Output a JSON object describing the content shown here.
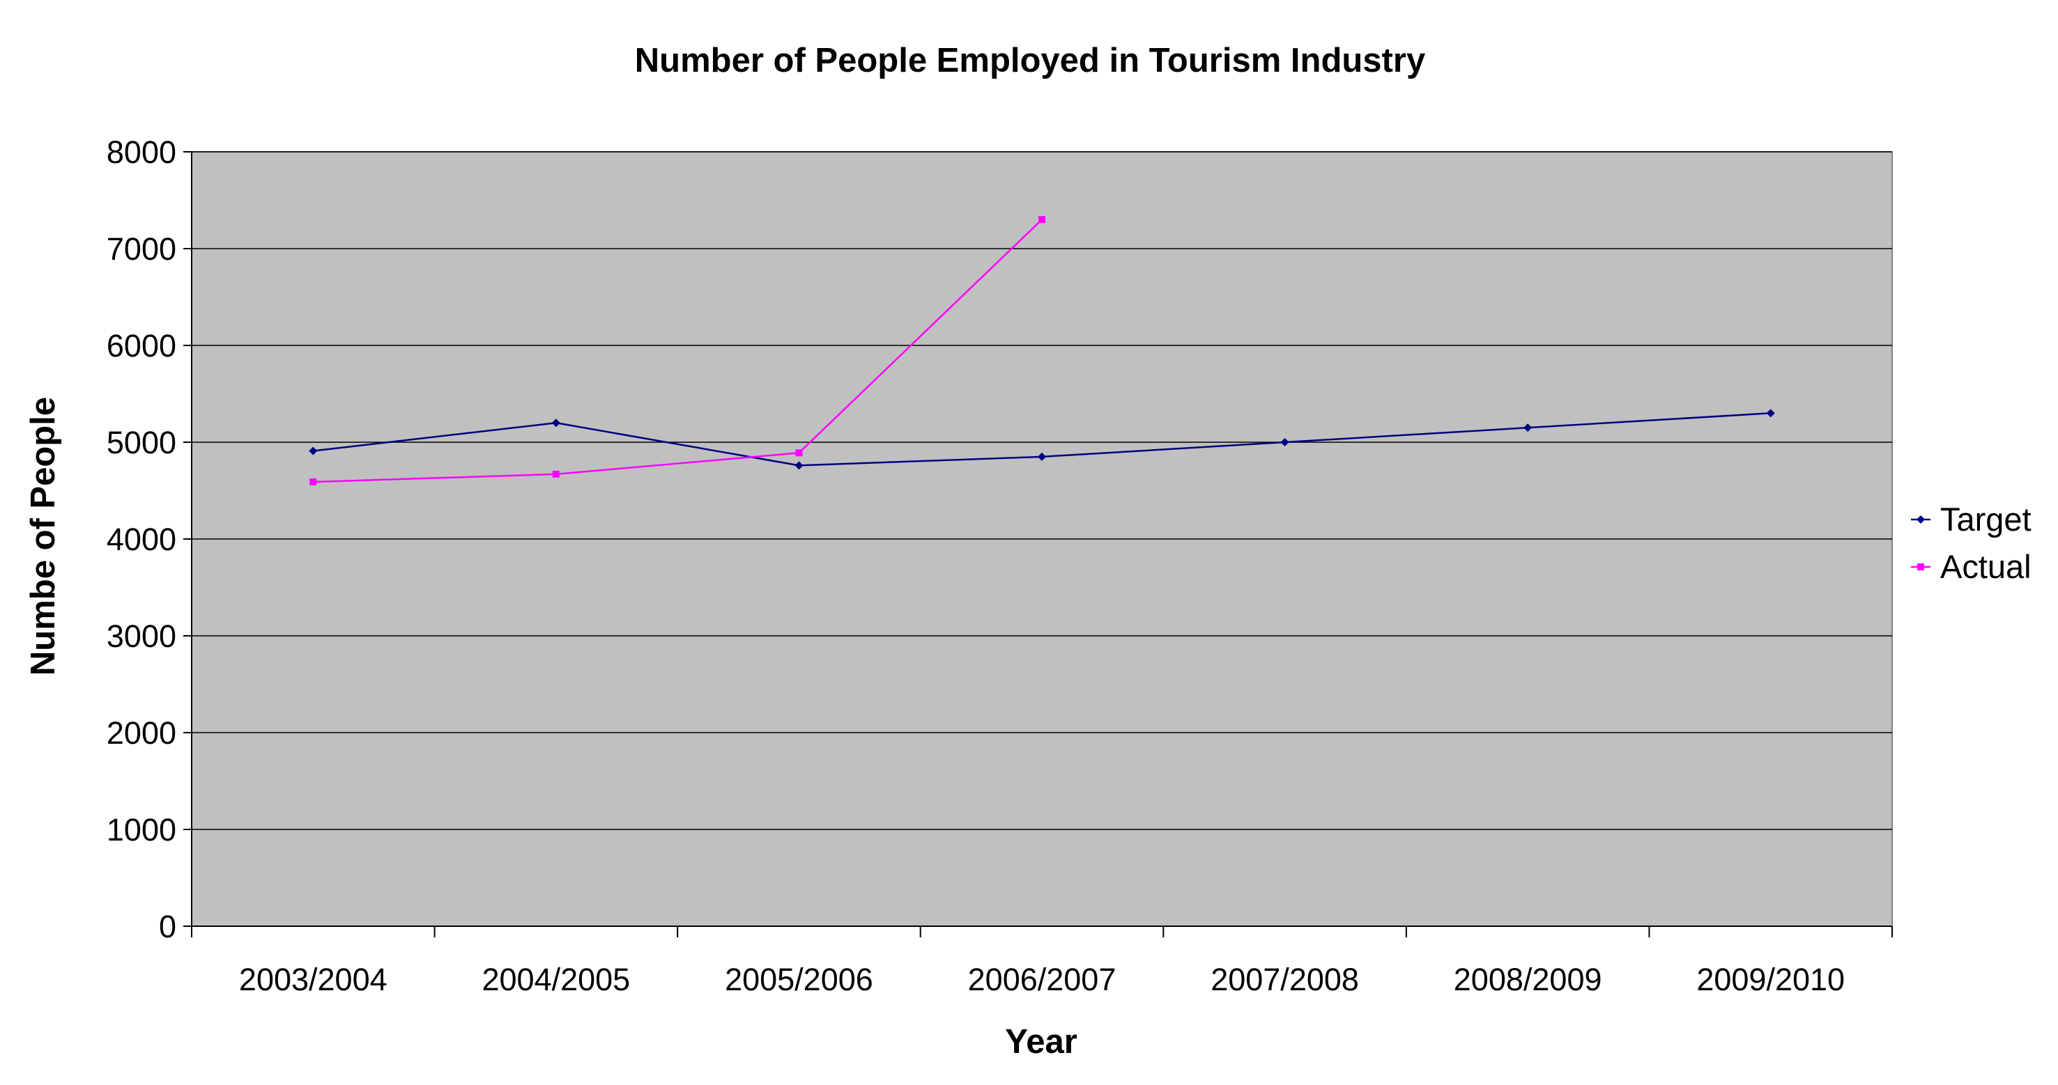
{
  "chart_data": {
    "type": "line",
    "title": "Number of People Employed in Tourism Industry",
    "xlabel": "Year",
    "ylabel": "Numbe of People",
    "categories": [
      "2003/2004",
      "2004/2005",
      "2005/2006",
      "2006/2007",
      "2007/2008",
      "2008/2009",
      "2009/2010"
    ],
    "ylim": [
      0,
      8000
    ],
    "yticks": [
      "0",
      "1000",
      "2000",
      "3000",
      "4000",
      "5000",
      "6000",
      "7000",
      "8000"
    ],
    "grid": true,
    "legend_position": "right",
    "plot_background": "#c0c0c0",
    "series": [
      {
        "name": "Target",
        "color": "#000080",
        "marker": "diamond",
        "values": [
          4910,
          5200,
          4760,
          4850,
          5000,
          5150,
          5300
        ]
      },
      {
        "name": "Actual",
        "color": "#ff00ff",
        "marker": "square",
        "values": [
          4590,
          4670,
          4890,
          7300,
          null,
          null,
          null
        ]
      }
    ]
  }
}
